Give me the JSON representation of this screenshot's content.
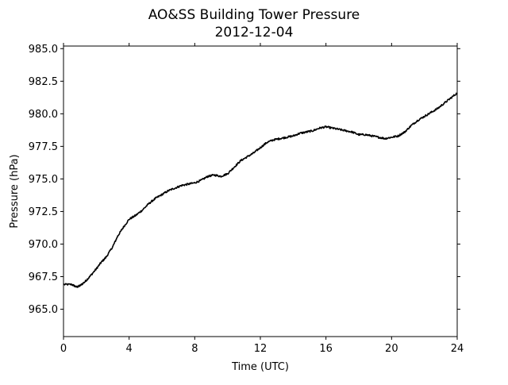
{
  "chart_data": {
    "type": "line",
    "title": "AO&SS Building Tower Pressure",
    "subtitle": "2012-12-04",
    "xlabel": "Time (UTC)",
    "ylabel": "Pressure (hPa)",
    "xlim": [
      0,
      24
    ],
    "ylim": [
      962.9,
      985.2
    ],
    "xticks": [
      0,
      4,
      8,
      12,
      16,
      20,
      24
    ],
    "yticks": [
      965.0,
      967.5,
      970.0,
      972.5,
      975.0,
      977.5,
      980.0,
      982.5,
      985.0
    ],
    "ytick_labels": [
      "965.0",
      "967.5",
      "970.0",
      "972.5",
      "975.0",
      "977.5",
      "980.0",
      "982.5",
      "985.0"
    ],
    "grid": false,
    "legend": "none",
    "line_color": "#000000",
    "series": [
      {
        "x": [
          0,
          0.5,
          0.8,
          1.0,
          1.3,
          1.6,
          2.0,
          2.3,
          2.6,
          3.0,
          3.3,
          3.6,
          4.0,
          4.4,
          4.8,
          5.2,
          5.6,
          6.0,
          6.4,
          6.8,
          7.2,
          7.6,
          8.0,
          8.4,
          8.8,
          9.2,
          9.6,
          10.0,
          10.4,
          10.8,
          11.2,
          11.6,
          12.0,
          12.4,
          12.8,
          13.2,
          13.6,
          14.0,
          14.4,
          14.8,
          15.2,
          15.6,
          16.0,
          16.4,
          16.8,
          17.2,
          17.6,
          18.0,
          18.4,
          18.8,
          19.2,
          19.6,
          20.0,
          20.4,
          20.8,
          21.2,
          21.6,
          22.0,
          22.4,
          22.8,
          23.2,
          23.6,
          24.0
        ],
        "y": [
          966.9,
          966.9,
          966.7,
          966.8,
          967.1,
          967.5,
          968.1,
          968.6,
          969.0,
          969.8,
          970.6,
          971.2,
          971.9,
          972.2,
          972.6,
          973.1,
          973.5,
          973.8,
          974.1,
          974.3,
          974.5,
          974.6,
          974.7,
          974.9,
          975.2,
          975.3,
          975.2,
          975.4,
          975.9,
          976.4,
          976.7,
          977.0,
          977.4,
          977.8,
          978.0,
          978.1,
          978.2,
          978.3,
          978.5,
          978.6,
          978.7,
          978.9,
          979.0,
          978.9,
          978.8,
          978.7,
          978.6,
          978.4,
          978.4,
          978.3,
          978.2,
          978.1,
          978.2,
          978.3,
          978.6,
          979.1,
          979.5,
          979.8,
          980.1,
          980.4,
          980.8,
          981.2,
          981.6
        ]
      }
    ]
  }
}
